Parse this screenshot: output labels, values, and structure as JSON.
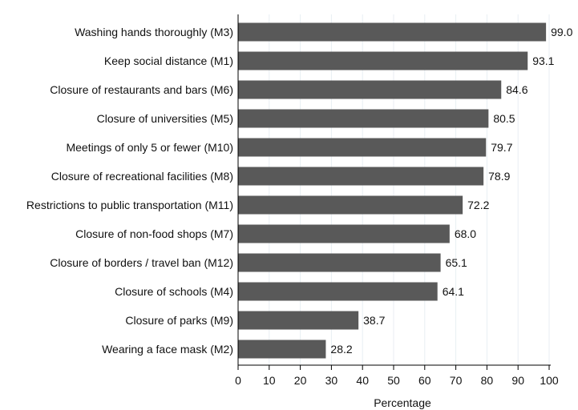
{
  "chart_data": {
    "type": "bar",
    "orientation": "horizontal",
    "categories": [
      "Washing hands thoroughly (M3)",
      "Keep social distance (M1)",
      "Closure of restaurants and bars (M6)",
      "Closure of universities (M5)",
      "Meetings of only 5 or fewer (M10)",
      "Closure of recreational facilities (M8)",
      "Restrictions to public transportation (M11)",
      "Closure of non-food shops (M7)",
      "Closure of borders / travel ban (M12)",
      "Closure of schools (M4)",
      "Closure of parks (M9)",
      "Wearing a face mask (M2)"
    ],
    "values": [
      99.0,
      93.1,
      84.6,
      80.5,
      79.7,
      78.9,
      72.2,
      68.0,
      65.1,
      64.1,
      38.7,
      28.2
    ],
    "value_labels": [
      "99.0",
      "93.1",
      "84.6",
      "80.5",
      "79.7",
      "78.9",
      "72.2",
      "68.0",
      "65.1",
      "64.1",
      "38.7",
      "28.2"
    ],
    "title": "",
    "xlabel": "Percentage",
    "ylabel": "",
    "xlim": [
      0,
      100
    ],
    "xticks": [
      0,
      10,
      20,
      30,
      40,
      50,
      60,
      70,
      80,
      90,
      100
    ],
    "grid": "vertical",
    "legend": "none",
    "colors": {
      "bar": "#595959",
      "grid": "#e8eef3",
      "axis": "#000000",
      "text": "#111111"
    }
  }
}
